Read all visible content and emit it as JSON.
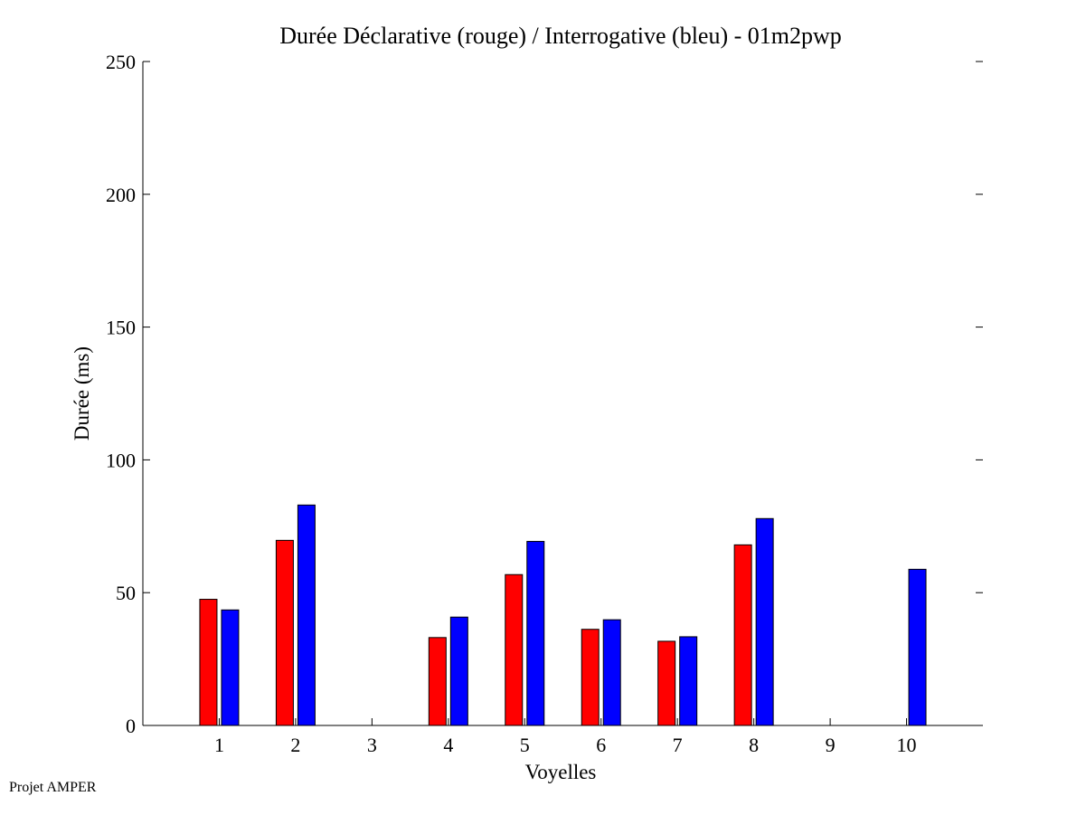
{
  "chart_data": {
    "type": "bar",
    "title": "Durée Déclarative (rouge) / Interrogative (bleu) - 01m2pwp",
    "xlabel": "Voyelles",
    "ylabel": "Durée (ms)",
    "categories": [
      "1",
      "2",
      "3",
      "4",
      "5",
      "6",
      "7",
      "8",
      "9",
      "10"
    ],
    "series": [
      {
        "color": "#ff0000",
        "values": [
          47.5,
          69.7,
          null,
          33.1,
          56.8,
          36.2,
          31.7,
          68.0,
          null,
          null
        ]
      },
      {
        "color": "#0000ff",
        "values": [
          43.5,
          83.0,
          null,
          40.8,
          69.3,
          39.8,
          33.4,
          77.9,
          null,
          58.8
        ]
      }
    ],
    "ylim": [
      0,
      250
    ],
    "yticks": [
      0,
      50,
      100,
      150,
      200,
      250
    ],
    "xlim": [
      0,
      11
    ],
    "grid": false,
    "legend": "none"
  },
  "footer": "Projet AMPER"
}
